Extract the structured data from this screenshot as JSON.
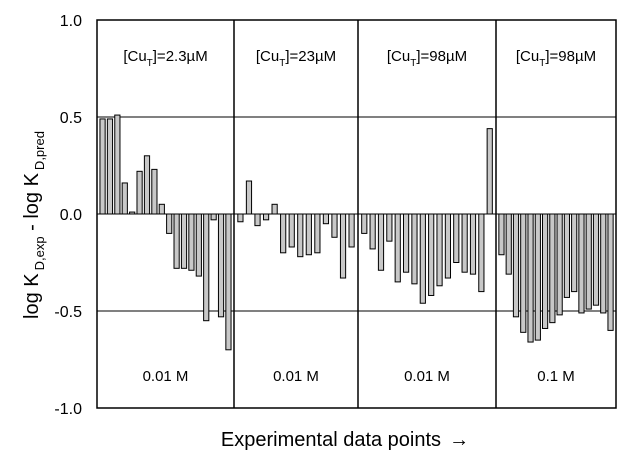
{
  "chart_data": {
    "type": "bar",
    "title": "",
    "xlabel": "Experimental data points",
    "xlabel_arrow": "→",
    "ylabel": {
      "part1": "log K",
      "sub1": "D,exp",
      "part2": " - log K",
      "sub2": "D,pred"
    },
    "ylim": [
      -1.0,
      1.0
    ],
    "yticks": [
      "-1.0",
      "-0.5",
      "0.0",
      "0.5",
      "1.0"
    ],
    "grid": true,
    "bar_color": "#c8c8c8",
    "panels": [
      {
        "conc_prefix": "[Cu",
        "conc_sub": "T",
        "conc_value": "]=2.3µM",
        "ionic_strength": "0.01 M",
        "values": [
          0.49,
          0.49,
          0.51,
          0.16,
          0.01,
          0.22,
          0.3,
          0.23,
          0.05,
          -0.1,
          -0.28,
          -0.28,
          -0.29,
          -0.32,
          -0.55,
          -0.03,
          -0.53,
          -0.7
        ]
      },
      {
        "conc_prefix": "[Cu",
        "conc_sub": "T",
        "conc_value": "]=23µM",
        "ionic_strength": "0.01 M",
        "values": [
          -0.04,
          0.17,
          -0.06,
          -0.03,
          0.05,
          -0.2,
          -0.17,
          -0.22,
          -0.21,
          -0.2,
          -0.05,
          -0.12,
          -0.33,
          -0.17
        ]
      },
      {
        "conc_prefix": "[Cu",
        "conc_sub": "T",
        "conc_value": "]=98µM",
        "ionic_strength": "0.01 M",
        "values": [
          -0.1,
          -0.18,
          -0.29,
          -0.14,
          -0.35,
          -0.3,
          -0.36,
          -0.46,
          -0.42,
          -0.37,
          -0.33,
          -0.25,
          -0.3,
          -0.31,
          -0.4,
          0.44
        ]
      },
      {
        "conc_prefix": "[Cu",
        "conc_sub": "T",
        "conc_value": "]=98µM",
        "ionic_strength": "0.1 M",
        "values": [
          -0.21,
          -0.31,
          -0.53,
          -0.61,
          -0.66,
          -0.65,
          -0.59,
          -0.56,
          -0.52,
          -0.43,
          -0.4,
          -0.51,
          -0.49,
          -0.47,
          -0.51,
          -0.6
        ]
      }
    ]
  }
}
